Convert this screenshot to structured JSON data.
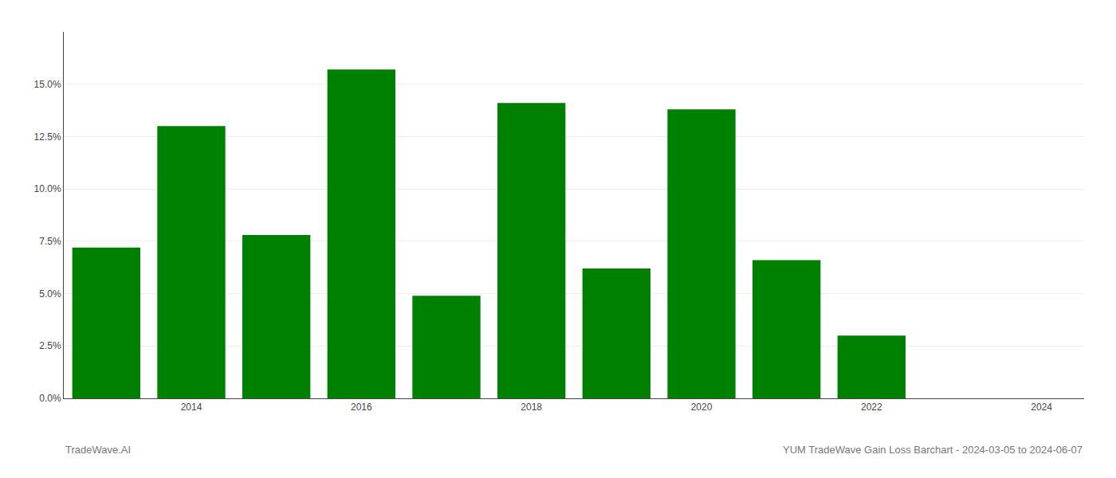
{
  "chart_data": {
    "type": "bar",
    "title": "YUM TradeWave Gain Loss Barchart - 2024-03-05 to 2024-06-07",
    "annotations": [
      "TradeWave.AI"
    ],
    "x": [
      2013,
      2014,
      2015,
      2016,
      2017,
      2018,
      2019,
      2020,
      2021,
      2022,
      2023
    ],
    "values": [
      0.072,
      0.13,
      0.078,
      0.157,
      0.049,
      0.141,
      0.062,
      0.138,
      0.066,
      0.03,
      0.0
    ],
    "color": "#008000",
    "xlim": [
      2012.5,
      2024.5
    ],
    "xticks": [
      2014,
      2016,
      2018,
      2020,
      2022,
      2024
    ],
    "ylim": [
      0,
      0.175
    ],
    "yticks": [
      {
        "value": 0.0,
        "label": "0.0%"
      },
      {
        "value": 0.025,
        "label": "2.5%"
      },
      {
        "value": 0.05,
        "label": "5.0%"
      },
      {
        "value": 0.075,
        "label": "7.5%"
      },
      {
        "value": 0.1,
        "label": "10.0%"
      },
      {
        "value": 0.125,
        "label": "12.5%"
      },
      {
        "value": 0.15,
        "label": "15.0%"
      }
    ],
    "grid": true
  }
}
